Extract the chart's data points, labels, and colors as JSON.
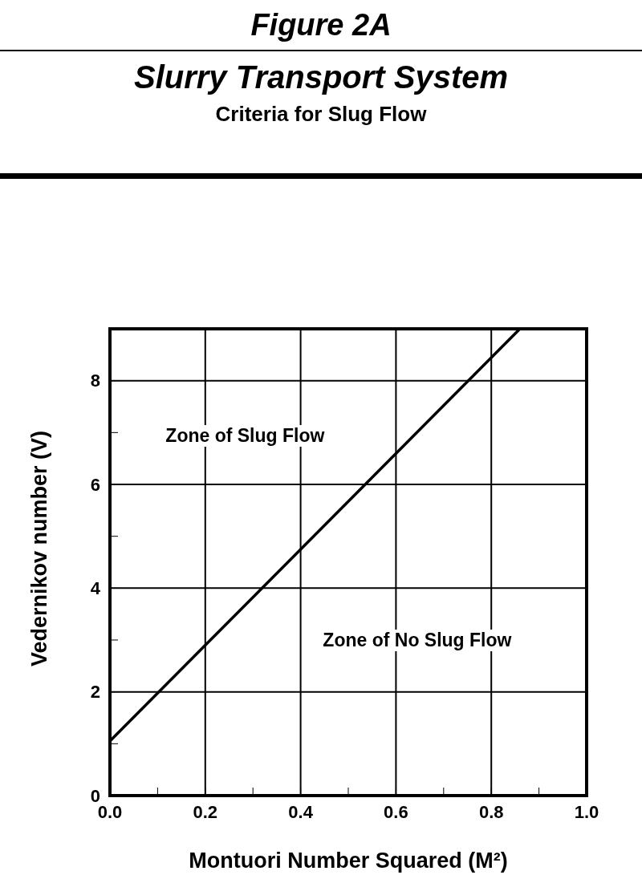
{
  "chart_data": {
    "type": "line",
    "title": "Slurry Transport System",
    "subtitle": "Criteria for Slug Flow",
    "annotations": [
      "Figure 2A",
      "Zone of Slug Flow",
      "Zone of No Slug Flow"
    ],
    "xlabel": "Montuori Number Squared (M²)",
    "ylabel": "Vedernikov number (V)",
    "series": [
      {
        "color": "#000000",
        "x": [
          0,
          0.86
        ],
        "values": [
          1.05,
          9
        ]
      }
    ],
    "xlim": [
      0,
      1
    ],
    "ylim": [
      0,
      9
    ],
    "xticks": [
      {
        "value": 0,
        "label": "0.0"
      },
      {
        "value": 0.1,
        "label": null
      },
      {
        "value": 0.2,
        "label": "0.2"
      },
      {
        "value": 0.3,
        "label": null
      },
      {
        "value": 0.4,
        "label": "0.4"
      },
      {
        "value": 0.5,
        "label": null
      },
      {
        "value": 0.6,
        "label": "0.6"
      },
      {
        "value": 0.7,
        "label": null
      },
      {
        "value": 0.8,
        "label": "0.8"
      },
      {
        "value": 0.9,
        "label": null
      },
      {
        "value": 1,
        "label": "1.0"
      }
    ],
    "yticks": [
      0,
      {
        "value": 1,
        "label": null
      },
      2,
      {
        "value": 3,
        "label": null
      },
      4,
      {
        "value": 5,
        "label": null
      },
      6,
      {
        "value": 7,
        "label": null
      },
      8
    ],
    "grid": true,
    "marker": "none",
    "line_style": "solid"
  }
}
